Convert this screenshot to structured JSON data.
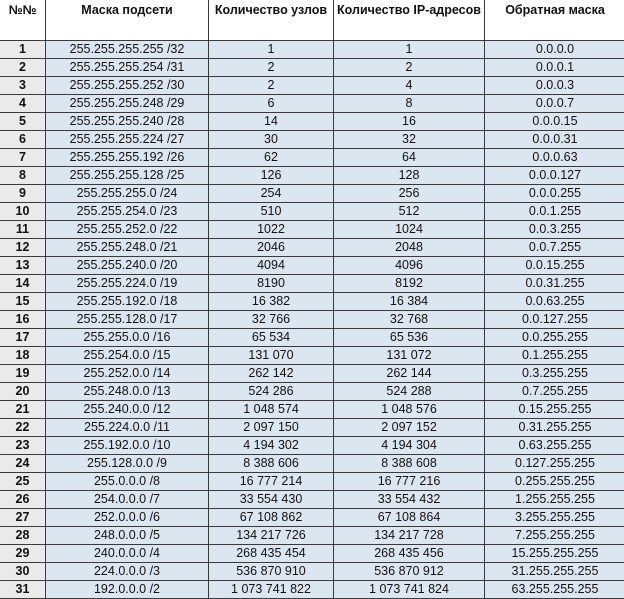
{
  "table": {
    "headers": [
      "№№",
      "Маска подсети",
      "Количество узлов",
      "Количество IP-адресов",
      "Обратная маска"
    ],
    "rows": [
      [
        "1",
        "255.255.255.255 /32",
        "1",
        "1",
        "0.0.0.0"
      ],
      [
        "2",
        "255.255.255.254 /31",
        "2",
        "2",
        "0.0.0.1"
      ],
      [
        "3",
        "255.255.255.252 /30",
        "2",
        "4",
        "0.0.0.3"
      ],
      [
        "4",
        "255.255.255.248 /29",
        "6",
        "8",
        "0.0.0.7"
      ],
      [
        "5",
        "255.255.255.240 /28",
        "14",
        "16",
        "0.0.0.15"
      ],
      [
        "6",
        "255.255.255.224 /27",
        "30",
        "32",
        "0.0.0.31"
      ],
      [
        "7",
        "255.255.255.192 /26",
        "62",
        "64",
        "0.0.0.63"
      ],
      [
        "8",
        "255.255.255.128 /25",
        "126",
        "128",
        "0.0.0.127"
      ],
      [
        "9",
        "255.255.255.0 /24",
        "254",
        "256",
        "0.0.0.255"
      ],
      [
        "10",
        "255.255.254.0 /23",
        "510",
        "512",
        "0.0.1.255"
      ],
      [
        "11",
        "255.255.252.0 /22",
        "1022",
        "1024",
        "0.0.3.255"
      ],
      [
        "12",
        "255.255.248.0 /21",
        "2046",
        "2048",
        "0.0.7.255"
      ],
      [
        "13",
        "255.255.240.0 /20",
        "4094",
        "4096",
        "0.0.15.255"
      ],
      [
        "14",
        "255.255.224.0 /19",
        "8190",
        "8192",
        "0.0.31.255"
      ],
      [
        "15",
        "255.255.192.0 /18",
        "16 382",
        "16 384",
        "0.0.63.255"
      ],
      [
        "16",
        "255.255.128.0 /17",
        "32 766",
        "32 768",
        "0.0.127.255"
      ],
      [
        "17",
        "255.255.0.0 /16",
        "65 534",
        "65 536",
        "0.0.255.255"
      ],
      [
        "18",
        "255.254.0.0 /15",
        "131 070",
        "131 072",
        "0.1.255.255"
      ],
      [
        "19",
        "255.252.0.0 /14",
        "262 142",
        "262 144",
        "0.3.255.255"
      ],
      [
        "20",
        "255.248.0.0 /13",
        "524 286",
        "524 288",
        "0.7.255.255"
      ],
      [
        "21",
        "255.240.0.0 /12",
        "1 048 574",
        "1 048 576",
        "0.15.255.255"
      ],
      [
        "22",
        "255.224.0.0 /11",
        "2 097 150",
        "2 097 152",
        "0.31.255.255"
      ],
      [
        "23",
        "255.192.0.0 /10",
        "4 194 302",
        "4 194 304",
        "0.63.255.255"
      ],
      [
        "24",
        "255.128.0.0 /9",
        "8 388 606",
        "8 388 608",
        "0.127.255.255"
      ],
      [
        "25",
        "255.0.0.0 /8",
        "16 777 214",
        "16 777 216",
        "0.255.255.255"
      ],
      [
        "26",
        "254.0.0.0 /7",
        "33 554 430",
        "33 554 432",
        "1.255.255.255"
      ],
      [
        "27",
        "252.0.0.0 /6",
        "67 108 862",
        "67 108 864",
        "3.255.255.255"
      ],
      [
        "28",
        "248.0.0.0 /5",
        "134 217 726",
        "134 217 728",
        "7.255.255.255"
      ],
      [
        "29",
        "240.0.0.0 /4",
        "268 435 454",
        "268 435 456",
        "15.255.255.255"
      ],
      [
        "30",
        "224.0.0.0 /3",
        "536 870 910",
        "536 870 912",
        "31.255.255.255"
      ],
      [
        "31",
        "192.0.0.0 /2",
        "1 073 741 822",
        "1 073 741 824",
        "63.255.255.255"
      ]
    ]
  },
  "colors": {
    "cell": "#dce6f1",
    "number_cell": "#eaeaea",
    "border": "#3a3a3a"
  }
}
